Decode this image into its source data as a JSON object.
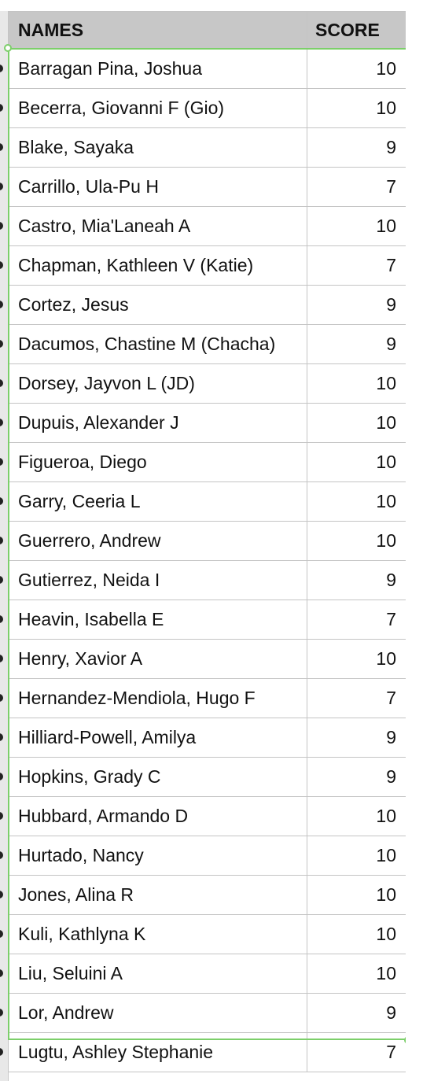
{
  "table": {
    "headers": {
      "names": "NAMES",
      "score": "SCORE"
    },
    "rows": [
      {
        "name": "Barragan Pina, Joshua",
        "score": "10"
      },
      {
        "name": "Becerra, Giovanni F (Gio)",
        "score": "10"
      },
      {
        "name": "Blake, Sayaka",
        "score": "9"
      },
      {
        "name": "Carrillo, Ula-Pu H",
        "score": "7"
      },
      {
        "name": "Castro, Mia'Laneah A",
        "score": "10"
      },
      {
        "name": "Chapman, Kathleen V (Katie)",
        "score": "7"
      },
      {
        "name": "Cortez, Jesus",
        "score": "9"
      },
      {
        "name": "Dacumos, Chastine M (Chacha)",
        "score": "9"
      },
      {
        "name": "Dorsey, Jayvon L (JD)",
        "score": "10"
      },
      {
        "name": "Dupuis, Alexander J",
        "score": "10"
      },
      {
        "name": "Figueroa, Diego",
        "score": "10"
      },
      {
        "name": "Garry, Ceeria L",
        "score": "10"
      },
      {
        "name": "Guerrero, Andrew",
        "score": "10"
      },
      {
        "name": "Gutierrez, Neida I",
        "score": "9"
      },
      {
        "name": "Heavin, Isabella E",
        "score": "7"
      },
      {
        "name": "Henry, Xavior A",
        "score": "10"
      },
      {
        "name": "Hernandez-Mendiola, Hugo F",
        "score": "7"
      },
      {
        "name": "Hilliard-Powell, Amilya",
        "score": "9"
      },
      {
        "name": "Hopkins, Grady C",
        "score": "9"
      },
      {
        "name": "Hubbard, Armando D",
        "score": "10"
      },
      {
        "name": "Hurtado, Nancy",
        "score": "10"
      },
      {
        "name": "Jones, Alina R",
        "score": "10"
      },
      {
        "name": "Kuli, Kathlyna K",
        "score": "10"
      },
      {
        "name": "Liu, Seluini A",
        "score": "10"
      },
      {
        "name": "Lor, Andrew",
        "score": "9"
      },
      {
        "name": "Lugtu, Ashley Stephanie",
        "score": "7"
      }
    ]
  },
  "colors": {
    "header_bg": "#c7c7c7",
    "selection_border": "#7ccf6a",
    "grid_line": "#c4c4c4"
  }
}
